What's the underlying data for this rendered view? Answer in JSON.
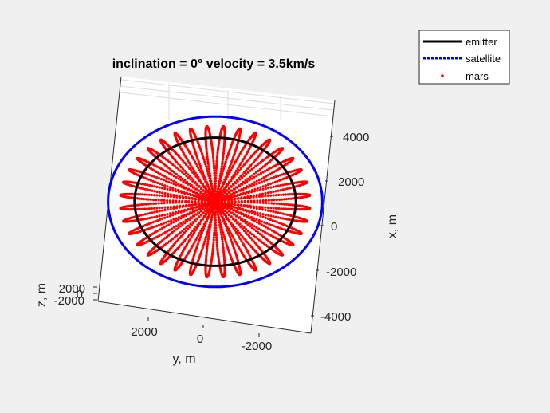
{
  "chart_data": {
    "type": "scatter",
    "title": "inclination = 0° velocity = 3.5km/s",
    "xlabel": "y, m",
    "ylabel": "x, m",
    "zlabel": "z, m",
    "x_ticks": [
      "2000",
      "0",
      "-2000"
    ],
    "y_ticks": [
      "4000",
      "2000",
      "0",
      "-2000",
      "-4000"
    ],
    "z_ticks": [
      "2000",
      "0",
      "-2000"
    ],
    "xlim": [
      -3200,
      3200
    ],
    "ylim": [
      -4600,
      4700
    ],
    "grid": true,
    "legend_position": "top-right",
    "legend": [
      {
        "name": "emitter",
        "style": "solid",
        "color": "#000000"
      },
      {
        "name": "satellite",
        "style": "dotted",
        "color": "#0000ff"
      },
      {
        "name": "mars",
        "style": "marker",
        "color": "#ff0000"
      }
    ],
    "series": [
      {
        "name": "emitter",
        "shape": "circle",
        "center": [
          0,
          0
        ],
        "radius": 3350
      },
      {
        "name": "satellite",
        "shape": "circle",
        "center": [
          0,
          0
        ],
        "radius": 4450
      },
      {
        "name": "mars",
        "shape": "epicycle",
        "center": [
          0,
          0
        ],
        "max_radius": 3950,
        "loops": 36
      }
    ]
  }
}
